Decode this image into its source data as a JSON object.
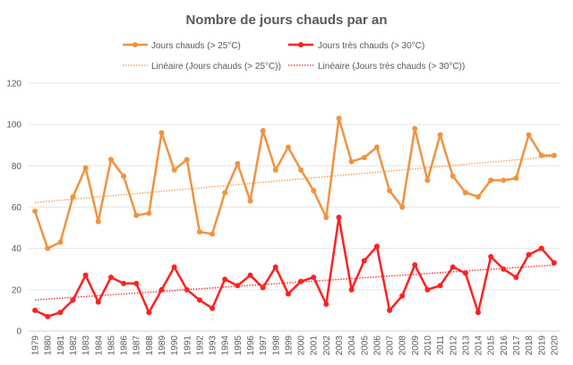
{
  "chart_data": {
    "type": "line",
    "title": "Nombre de jours chauds par an",
    "xlabel": "",
    "ylabel": "",
    "ylim": [
      0,
      120
    ],
    "yticks": [
      0,
      20,
      40,
      60,
      80,
      100,
      120
    ],
    "grid": true,
    "legend_placement": "top",
    "x": [
      "1979",
      "1980",
      "1981",
      "1982",
      "1983",
      "1984",
      "1985",
      "1986",
      "1987",
      "1988",
      "1989",
      "1990",
      "1991",
      "1992",
      "1993",
      "1994",
      "1995",
      "1996",
      "1997",
      "1998",
      "1999",
      "2000",
      "2001",
      "2002",
      "2003",
      "2004",
      "2005",
      "2006",
      "2007",
      "2008",
      "2009",
      "2010",
      "2011",
      "2012",
      "2013",
      "2014",
      "2015",
      "2016",
      "2017",
      "2018",
      "2019",
      "2020"
    ],
    "series": [
      {
        "name": "Jours chauds (> 25°C)",
        "color": "#f09340",
        "values": [
          58,
          40,
          43,
          65,
          79,
          53,
          83,
          75,
          56,
          57,
          96,
          78,
          83,
          48,
          47,
          67,
          81,
          63,
          97,
          78,
          89,
          78,
          68,
          55,
          103,
          82,
          84,
          89,
          68,
          60,
          98,
          73,
          95,
          75,
          67,
          65,
          73,
          73,
          74,
          95,
          85,
          85
        ]
      },
      {
        "name": "Jours très chauds (> 30°C)",
        "color": "#ff2020",
        "values": [
          10,
          7,
          9,
          15,
          27,
          14,
          26,
          23,
          23,
          9,
          20,
          31,
          20,
          15,
          11,
          25,
          22,
          27,
          21,
          31,
          18,
          24,
          26,
          13,
          55,
          20,
          34,
          41,
          10,
          17,
          32,
          20,
          22,
          31,
          28,
          9,
          36,
          30,
          26,
          37,
          40,
          33
        ]
      }
    ],
    "trendlines": [
      {
        "name": "Linéaire (Jours chauds (> 25°C))",
        "of": 0,
        "color": "#f5a55e"
      },
      {
        "name": "Linéaire (Jours très chauds (> 30°C))",
        "of": 1,
        "color": "#ff3a3a"
      }
    ]
  }
}
